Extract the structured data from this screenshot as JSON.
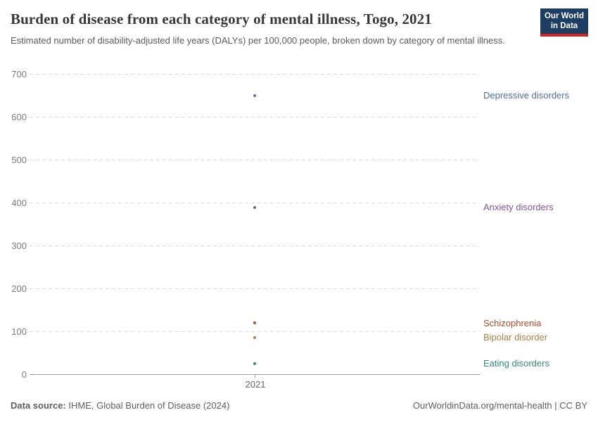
{
  "header": {
    "title": "Burden of disease from each category of mental illness, Togo, 2021",
    "subtitle": "Estimated number of disability-adjusted life years (DALYs) per 100,000 people, broken down by category of mental illness.",
    "logo": {
      "line1": "Our World",
      "line2": "in Data",
      "bg": "#1d3d63",
      "accent": "#cb2620"
    }
  },
  "chart_data": {
    "type": "scatter",
    "title": "Burden of disease from each category of mental illness, Togo, 2021",
    "x": [
      2021
    ],
    "x_tick_label": "2021",
    "xlabel": "",
    "ylabel": "DALYs per 100,000 people",
    "ylim": [
      0,
      700
    ],
    "yticks": [
      0,
      100,
      200,
      300,
      400,
      500,
      600,
      700
    ],
    "grid": true,
    "legend_position": "right-labels",
    "series": [
      {
        "name": "Depressive disorders",
        "values": [
          650
        ],
        "color": "#4C6EA9"
      },
      {
        "name": "Anxiety disorders",
        "values": [
          389
        ],
        "color": "#8355A5"
      },
      {
        "name": "Schizophrenia",
        "values": [
          119
        ],
        "color": "#B5492B"
      },
      {
        "name": "Bipolar disorder",
        "values": [
          86
        ],
        "color": "#B07C40"
      },
      {
        "name": "Eating disorders",
        "values": [
          25
        ],
        "color": "#2E8E79"
      }
    ]
  },
  "footer": {
    "source_label": "Data source:",
    "source_text": " IHME, Global Burden of Disease (2024)",
    "rights": "OurWorldinData.org/mental-health | CC BY"
  }
}
